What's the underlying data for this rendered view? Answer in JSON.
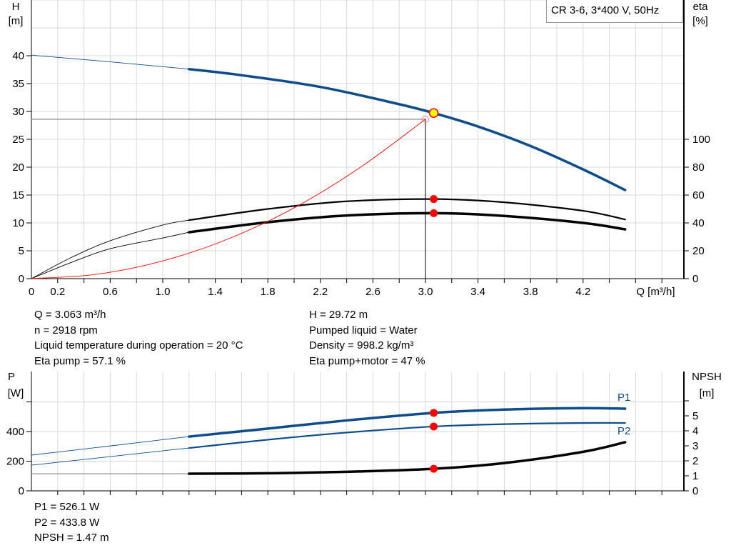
{
  "chart_data": [
    {
      "type": "line",
      "title": "CR 3-6, 3*400 V, 50Hz",
      "xlabel": "Q [m³/h]",
      "ylabel_left": [
        "H",
        "[m]"
      ],
      "ylabel_right": [
        "eta",
        "[%]"
      ],
      "xlim": [
        0,
        4.97
      ],
      "ylim_left": [
        0,
        50
      ],
      "ylim_right": [
        0,
        200
      ],
      "grid": true,
      "legend": "top-right",
      "x_tick_labels": [
        "0",
        "0.2",
        "0.6",
        "1.0",
        "1.4",
        "1.8",
        "2.2",
        "2.6",
        "3.0",
        "3.4",
        "3.8",
        "4.2"
      ],
      "y_tick_labels_left": [
        "0",
        "5",
        "10",
        "15",
        "20",
        "25",
        "30",
        "35",
        "40"
      ],
      "y_tick_labels_right": [
        "0",
        "20",
        "40",
        "60",
        "80",
        "100"
      ],
      "series": [
        {
          "id": "head",
          "axis": "left",
          "color": "#0f4c8a",
          "q": [
            0,
            0.6,
            1.2,
            1.6,
            2.2,
            2.8,
            3.063,
            3.4,
            3.8,
            4.2,
            4.52
          ],
          "values": [
            40.1,
            38.9,
            37.6,
            36.5,
            34.4,
            31.3,
            29.72,
            27.3,
            23.8,
            19.6,
            15.9
          ],
          "solid_from": 1.2
        },
        {
          "id": "eta-pump",
          "axis": "right",
          "color": "#000000",
          "q": [
            0,
            0.3,
            0.6,
            1.0,
            1.2,
            1.8,
            2.4,
            3.063,
            3.6,
            4.2,
            4.52
          ],
          "values": [
            0,
            15,
            27.2,
            38.5,
            42,
            50,
            55.5,
            57.1,
            54.8,
            48.7,
            42.5
          ],
          "solid_from": 1.2
        },
        {
          "id": "eta-pump-motor",
          "axis": "right",
          "color": "#000000",
          "q": [
            0,
            0.3,
            0.6,
            1.0,
            1.2,
            1.8,
            2.4,
            3.063,
            3.6,
            4.2,
            4.52
          ],
          "values": [
            0,
            11.5,
            21.5,
            29.2,
            33.3,
            40.5,
            45.3,
            47,
            45,
            40,
            35.4
          ],
          "solid_from": 1.2,
          "thick": true
        },
        {
          "id": "system-curve",
          "axis": "left",
          "color": "#ff0000",
          "q": [
            0,
            0.5,
            1.0,
            1.5,
            2.0,
            2.5,
            3.0
          ],
          "values": [
            0,
            0.79,
            3.18,
            7.15,
            12.7,
            19.9,
            28.6
          ]
        }
      ],
      "duty_point": {
        "q": 3.063,
        "h": 29.72,
        "eta_pump": 57.1,
        "eta_pump_motor": 47
      },
      "system_point": {
        "q": 3.0,
        "h": 28.6
      },
      "colors": {
        "duty_fill": "#ffff00",
        "marker": "#ff0000",
        "grid": "#d9d9d9"
      }
    },
    {
      "type": "line",
      "ylabel_left": [
        "P",
        "[W]"
      ],
      "ylabel_right": [
        "NPSH",
        "[m]"
      ],
      "xlim": [
        0,
        4.97
      ],
      "ylim_left": [
        0,
        800
      ],
      "ylim_right": [
        0,
        8
      ],
      "grid": true,
      "y_tick_labels_left": [
        "0",
        "200",
        "400"
      ],
      "y_tick_labels_right": [
        "0",
        "1",
        "2",
        "3",
        "4",
        "5"
      ],
      "series": [
        {
          "id": "P1",
          "name": "P1",
          "axis": "left",
          "color": "#0f4c8a",
          "q": [
            0,
            0.6,
            1.2,
            1.8,
            2.4,
            3.063,
            3.6,
            4.2,
            4.52
          ],
          "values": [
            241,
            303,
            366,
            420,
            475,
            526,
            548,
            558,
            554
          ],
          "solid_from": 1.2,
          "thick": true
        },
        {
          "id": "P2",
          "name": "P2",
          "axis": "left",
          "color": "#0f4c8a",
          "q": [
            0,
            0.6,
            1.2,
            1.8,
            2.4,
            3.063,
            3.6,
            4.2,
            4.52
          ],
          "values": [
            173,
            231,
            289,
            345,
            393,
            434,
            450,
            458,
            458
          ],
          "solid_from": 1.2
        },
        {
          "id": "NPSH",
          "axis": "right",
          "color": "#000000",
          "q": [
            0,
            0.6,
            1.2,
            1.8,
            2.4,
            3.063,
            3.6,
            4.2,
            4.52
          ],
          "values": [
            1.14,
            1.14,
            1.14,
            1.17,
            1.27,
            1.47,
            1.85,
            2.6,
            3.24
          ],
          "solid_from": 1.2,
          "thick": true
        }
      ],
      "duty_point": {
        "q": 3.063,
        "p1": 526.1,
        "p2": 433.8,
        "npsh": 1.47
      }
    }
  ],
  "info": {
    "left": [
      "Q = 3.063 m³/h",
      "n = 2918 rpm",
      "Liquid temperature during operation = 20 °C",
      "Eta pump = 57.1 %"
    ],
    "right": [
      "H = 29.72 m",
      "Pumped liquid = Water",
      "Density = 998.2 kg/m³",
      "Eta pump+motor = 47 %"
    ],
    "bottom": [
      "P1 = 526.1 W",
      "P2 = 433.8 W",
      "NPSH = 1.47 m"
    ]
  }
}
